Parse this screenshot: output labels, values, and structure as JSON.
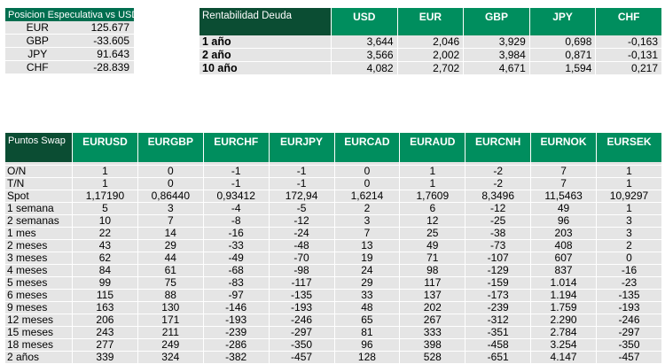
{
  "posicion": {
    "title": "Posicion Especulativa vs USD",
    "rows": [
      {
        "ccy": "EUR",
        "value": "125.677"
      },
      {
        "ccy": "GBP",
        "value": "-33.605"
      },
      {
        "ccy": "JPY",
        "value": "91.643"
      },
      {
        "ccy": "CHF",
        "value": "-28.839"
      }
    ]
  },
  "rentabilidad": {
    "title": "Rentabilidad Deuda",
    "headers": [
      "USD",
      "EUR",
      "GBP",
      "JPY",
      "CHF"
    ],
    "rows": [
      {
        "label": "1 año",
        "values": [
          "3,644",
          "2,046",
          "3,929",
          "0,698",
          "-0,163"
        ]
      },
      {
        "label": "2 año",
        "values": [
          "3,566",
          "2,002",
          "3,984",
          "0,871",
          "-0,131"
        ]
      },
      {
        "label": "10 año",
        "values": [
          "4,082",
          "2,702",
          "4,671",
          "1,594",
          "0,217"
        ]
      }
    ]
  },
  "swap": {
    "title": "Puntos Swap",
    "headers": [
      "EURUSD",
      "EURGBP",
      "EURCHF",
      "EURJPY",
      "EURCAD",
      "EURAUD",
      "EURCNH",
      "EURNOK",
      "EURSEK"
    ],
    "rows": [
      {
        "label": "O/N",
        "values": [
          "1",
          "0",
          "-1",
          "-1",
          "0",
          "1",
          "-2",
          "7",
          "1"
        ]
      },
      {
        "label": "T/N",
        "values": [
          "1",
          "0",
          "-1",
          "-1",
          "0",
          "1",
          "-2",
          "7",
          "1"
        ]
      },
      {
        "label": "Spot",
        "values": [
          "1,17190",
          "0,86440",
          "0,93412",
          "172,94",
          "1,6214",
          "1,7609",
          "8,3496",
          "11,5463",
          "10,9297"
        ]
      },
      {
        "label": "1 semana",
        "values": [
          "5",
          "3",
          "-4",
          "-5",
          "2",
          "6",
          "-12",
          "49",
          "1"
        ]
      },
      {
        "label": "2 semanas",
        "values": [
          "10",
          "7",
          "-8",
          "-12",
          "3",
          "12",
          "-25",
          "96",
          "3"
        ]
      },
      {
        "label": "1 mes",
        "values": [
          "22",
          "14",
          "-16",
          "-24",
          "7",
          "25",
          "-38",
          "203",
          "3"
        ]
      },
      {
        "label": "2 meses",
        "values": [
          "43",
          "29",
          "-33",
          "-48",
          "13",
          "49",
          "-73",
          "408",
          "2"
        ]
      },
      {
        "label": "3 meses",
        "values": [
          "62",
          "44",
          "-49",
          "-70",
          "19",
          "71",
          "-107",
          "607",
          "0"
        ]
      },
      {
        "label": "4 meses",
        "values": [
          "84",
          "61",
          "-68",
          "-98",
          "24",
          "98",
          "-129",
          "837",
          "-16"
        ]
      },
      {
        "label": "5 meses",
        "values": [
          "99",
          "75",
          "-83",
          "-117",
          "29",
          "117",
          "-159",
          "1.014",
          "-23"
        ]
      },
      {
        "label": "6 meses",
        "values": [
          "115",
          "88",
          "-97",
          "-135",
          "33",
          "137",
          "-173",
          "1.194",
          "-135"
        ]
      },
      {
        "label": "9 meses",
        "values": [
          "163",
          "130",
          "-146",
          "-193",
          "48",
          "202",
          "-239",
          "1.759",
          "-193"
        ]
      },
      {
        "label": "12 meses",
        "values": [
          "206",
          "171",
          "-193",
          "-246",
          "65",
          "267",
          "-312",
          "2.290",
          "-246"
        ]
      },
      {
        "label": "15 meses",
        "values": [
          "243",
          "211",
          "-239",
          "-297",
          "81",
          "333",
          "-351",
          "2.784",
          "-297"
        ]
      },
      {
        "label": "18 meses",
        "values": [
          "277",
          "249",
          "-286",
          "-350",
          "96",
          "398",
          "-458",
          "3.254",
          "-350"
        ]
      },
      {
        "label": "2 años",
        "values": [
          "339",
          "324",
          "-382",
          "-457",
          "128",
          "528",
          "-651",
          "4.147",
          "-457"
        ]
      }
    ]
  }
}
